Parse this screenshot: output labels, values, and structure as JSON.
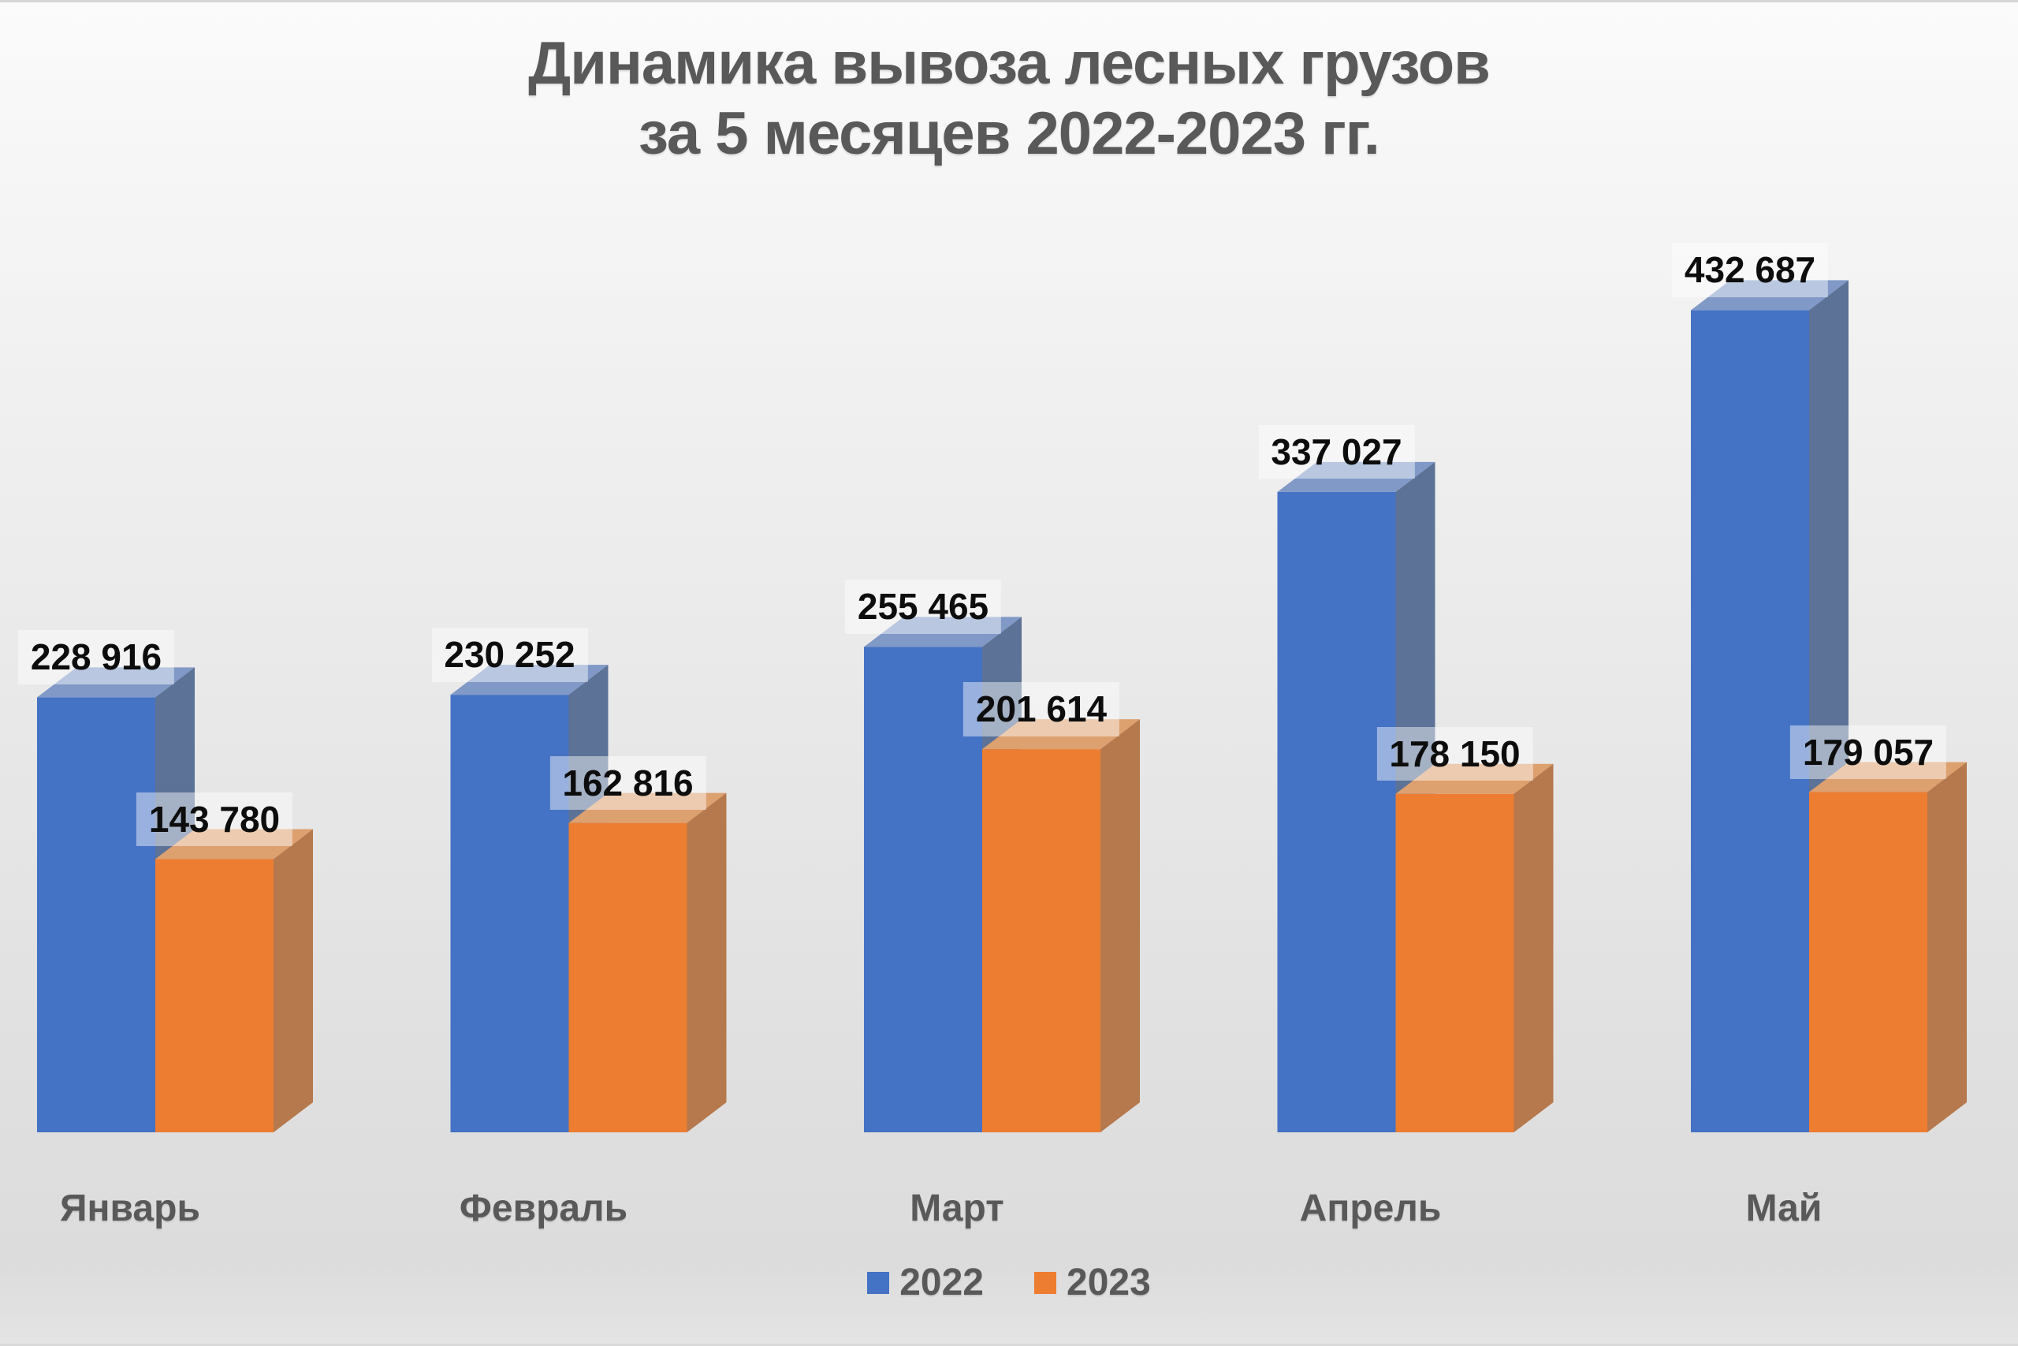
{
  "title": {
    "line1": "Динамика вывоза лесных грузов",
    "line2": "за 5 месяцев 2022-2023 гг."
  },
  "chart_data": {
    "type": "bar",
    "style": "3d-column",
    "title": "Динамика вывоза лесных грузов за 5 месяцев 2022-2023 гг.",
    "categories": [
      "Январь",
      "Февраль",
      "Март",
      "Апрель",
      "Май"
    ],
    "series": [
      {
        "name": "2022",
        "color": "#4472C4",
        "color_side": "#5C7296",
        "color_top": "#8099C7",
        "values": [
          228916,
          230252,
          255465,
          337027,
          432687
        ]
      },
      {
        "name": "2023",
        "color": "#ED7D31",
        "color_side": "#B5794D",
        "color_top": "#DDA06F",
        "values": [
          143780,
          162816,
          201614,
          178150,
          179057
        ]
      }
    ],
    "value_labels_shown": true,
    "value_label_format": "space thousands separator",
    "xlabel": "",
    "ylabel": "",
    "axes_shown": false,
    "grid": false,
    "legend_position": "bottom-center",
    "background": "light gray gradient"
  }
}
